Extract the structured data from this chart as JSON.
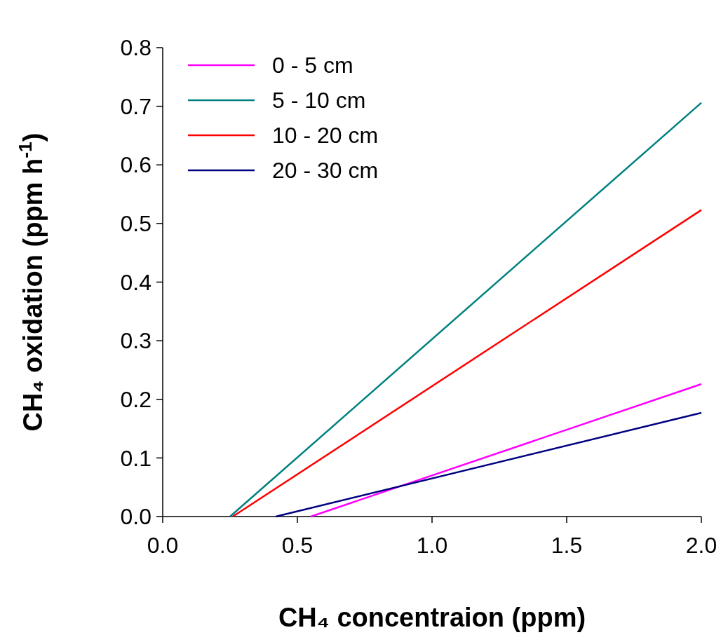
{
  "chart_data": {
    "type": "line",
    "xlabel": "CH₄ concentraion (ppm)",
    "ylabel": "CH₄ oxidation (ppm h$^{-1}$)",
    "xlim": [
      0,
      2
    ],
    "xticks": [
      {
        "value": 0,
        "label": "0.0"
      },
      0.5,
      {
        "value": 1,
        "label": "1.0"
      },
      1.5,
      {
        "value": 2,
        "label": "2.0"
      }
    ],
    "ylim": [
      0,
      0.8
    ],
    "yticks": [
      {
        "value": 0,
        "label": "0.0"
      },
      0.1,
      0.2,
      0.3,
      0.4,
      0.5,
      0.6,
      0.7,
      0.8
    ],
    "grid": false,
    "legend": "top left",
    "marker": "none",
    "line_style": "solid",
    "series": [
      {
        "name": "0 - 5 cm",
        "color": "#ff00ff",
        "x": [
          0.55,
          2.0
        ],
        "values": [
          0,
          0.226
        ]
      },
      {
        "name": "5 - 10 cm",
        "color": "#008080",
        "x": [
          0.25,
          2.0
        ],
        "values": [
          0,
          0.706
        ]
      },
      {
        "name": "10 - 20 cm",
        "color": "#ff0000",
        "x": [
          0.26,
          2.0
        ],
        "values": [
          0,
          0.523
        ]
      },
      {
        "name": "20 - 30 cm",
        "color": "#000080",
        "x": [
          0.42,
          2.0
        ],
        "values": [
          0,
          0.177
        ]
      }
    ]
  }
}
